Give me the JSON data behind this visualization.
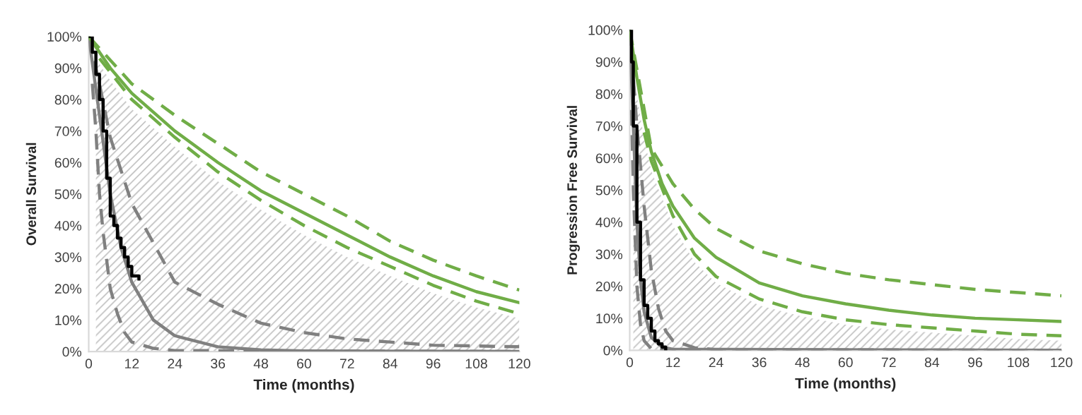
{
  "chart_data": [
    {
      "type": "line",
      "xlabel": "Time (months)",
      "ylabel": "Overall Survival",
      "xlim": [
        0,
        120
      ],
      "ylim": [
        0,
        100
      ],
      "xticks": [
        0,
        12,
        24,
        36,
        48,
        60,
        72,
        84,
        96,
        108,
        120
      ],
      "yticks": [
        {
          "value": 0,
          "label": "0%"
        },
        {
          "value": 10,
          "label": "10%"
        },
        {
          "value": 20,
          "label": "20%"
        },
        {
          "value": 30,
          "label": "30%"
        },
        {
          "value": 40,
          "label": "40%"
        },
        {
          "value": 50,
          "label": "50%"
        },
        {
          "value": 60,
          "label": "60%"
        },
        {
          "value": 70,
          "label": "70%"
        },
        {
          "value": 80,
          "label": "80%"
        },
        {
          "value": 90,
          "label": "90%"
        },
        {
          "value": 100,
          "label": "100%"
        }
      ],
      "grid": false,
      "legend": false,
      "marker": "none",
      "series": [
        {
          "type": "area",
          "color": "#bfbfbf",
          "x": [
            2,
            6,
            12,
            24,
            36,
            48,
            60,
            72,
            84,
            96,
            108,
            120
          ],
          "values": [
            93,
            86,
            77,
            65,
            54,
            45,
            37,
            30,
            24,
            18.5,
            14,
            10.5
          ]
        },
        {
          "color": "#808080",
          "line_style": "solid",
          "x": [
            0,
            3,
            6,
            9,
            12,
            18,
            24,
            36,
            48,
            60,
            120
          ],
          "values": [
            100,
            75,
            50,
            33,
            22,
            10,
            5,
            1.5,
            0.5,
            0.2,
            0
          ]
        },
        {
          "color": "#808080",
          "line_style": "dashed",
          "x": [
            0,
            3,
            6,
            12,
            24,
            36,
            48,
            60,
            72,
            84,
            96,
            120
          ],
          "values": [
            100,
            85,
            68,
            47,
            22,
            15,
            9,
            6,
            4,
            3,
            2,
            1.5
          ]
        },
        {
          "color": "#808080",
          "line_style": "dashed",
          "x": [
            1,
            2,
            3,
            4,
            6,
            8,
            10,
            12,
            18,
            24,
            120
          ],
          "values": [
            85,
            70,
            50,
            38,
            20,
            12,
            6,
            3,
            1,
            0.3,
            0
          ]
        },
        {
          "type": "step",
          "color": "#000000",
          "line_style": "solid",
          "x": [
            0,
            1,
            2,
            3,
            4,
            5,
            6,
            7,
            8,
            9,
            10,
            11,
            12,
            14
          ],
          "values": [
            100,
            95,
            88,
            80,
            70,
            55,
            43,
            40,
            36,
            33,
            30,
            27,
            24,
            23
          ]
        },
        {
          "color": "#70ad47",
          "line_style": "solid",
          "x": [
            0,
            6,
            12,
            18,
            24,
            36,
            48,
            60,
            72,
            84,
            96,
            108,
            120
          ],
          "values": [
            100,
            90,
            82,
            76,
            70,
            60,
            51,
            44,
            37,
            30,
            24,
            19,
            15.5
          ]
        },
        {
          "color": "#70ad47",
          "line_style": "dashed",
          "x": [
            0,
            12,
            24,
            36,
            48,
            60,
            72,
            84,
            96,
            108,
            120
          ],
          "values": [
            100,
            85,
            75,
            66,
            57,
            50,
            43,
            35,
            29,
            24,
            19.5
          ]
        },
        {
          "color": "#70ad47",
          "line_style": "dashed",
          "x": [
            3,
            12,
            24,
            36,
            48,
            60,
            72,
            84,
            96,
            108,
            120
          ],
          "values": [
            93,
            80,
            68,
            57,
            48,
            40,
            33,
            27,
            21,
            16,
            12
          ]
        }
      ]
    },
    {
      "type": "line",
      "xlabel": "Time (months)",
      "ylabel": "Progression Free Survival",
      "xlim": [
        0,
        120
      ],
      "ylim": [
        0,
        100
      ],
      "xticks": [
        0,
        12,
        24,
        36,
        48,
        60,
        72,
        84,
        96,
        108,
        120
      ],
      "yticks": [
        {
          "value": 0,
          "label": "0%"
        },
        {
          "value": 10,
          "label": "10%"
        },
        {
          "value": 20,
          "label": "20%"
        },
        {
          "value": 30,
          "label": "30%"
        },
        {
          "value": 40,
          "label": "40%"
        },
        {
          "value": 50,
          "label": "50%"
        },
        {
          "value": 60,
          "label": "60%"
        },
        {
          "value": 70,
          "label": "70%"
        },
        {
          "value": 80,
          "label": "80%"
        },
        {
          "value": 90,
          "label": "90%"
        },
        {
          "value": 100,
          "label": "100%"
        }
      ],
      "grid": false,
      "legend": false,
      "marker": "none",
      "series": [
        {
          "type": "area",
          "color": "#bfbfbf",
          "x": [
            1,
            4,
            6,
            12,
            18,
            24,
            36,
            48,
            60,
            72,
            84,
            96,
            108,
            120
          ],
          "values": [
            86,
            66,
            56,
            39,
            27.5,
            21,
            14,
            10.5,
            8,
            6.5,
            5.5,
            4.5,
            3.5,
            3
          ]
        },
        {
          "color": "#808080",
          "line_style": "solid",
          "x": [
            0,
            1,
            2,
            3,
            4,
            6,
            9,
            12,
            120
          ],
          "values": [
            100,
            70,
            40,
            22,
            12,
            4,
            1,
            0.3,
            0
          ]
        },
        {
          "color": "#808080",
          "line_style": "dashed",
          "x": [
            0,
            2,
            4,
            6,
            8,
            10,
            12,
            18,
            24,
            120
          ],
          "values": [
            100,
            70,
            45,
            25,
            13,
            6,
            3,
            0.8,
            0.2,
            0
          ]
        },
        {
          "color": "#808080",
          "line_style": "dashed",
          "x": [
            0.5,
            1,
            2,
            3,
            4,
            6,
            12,
            120
          ],
          "values": [
            75,
            50,
            20,
            8,
            3,
            0.5,
            0,
            0
          ]
        },
        {
          "type": "step",
          "color": "#000000",
          "line_style": "solid",
          "x": [
            0,
            0.5,
            1,
            2,
            3,
            4,
            5,
            6,
            7,
            8,
            9,
            10
          ],
          "values": [
            100,
            90,
            70,
            40,
            22,
            14,
            10,
            6,
            3,
            2,
            1,
            0
          ]
        },
        {
          "color": "#70ad47",
          "line_style": "solid",
          "x": [
            0,
            2,
            4,
            6,
            9,
            12,
            18,
            24,
            36,
            48,
            60,
            72,
            84,
            96,
            108,
            120
          ],
          "values": [
            100,
            85,
            72,
            62,
            52,
            45,
            35,
            29,
            21,
            17,
            14.5,
            12.5,
            11,
            10,
            9.5,
            9
          ]
        },
        {
          "color": "#70ad47",
          "line_style": "dashed",
          "x": [
            0,
            6,
            12,
            18,
            24,
            36,
            48,
            60,
            72,
            84,
            96,
            108,
            120
          ],
          "values": [
            100,
            63,
            52,
            44,
            38,
            31,
            27,
            24,
            22,
            20.5,
            19,
            18,
            17
          ]
        },
        {
          "color": "#70ad47",
          "line_style": "dashed",
          "x": [
            4,
            6,
            12,
            18,
            24,
            36,
            48,
            60,
            72,
            84,
            96,
            108,
            120
          ],
          "values": [
            68,
            59,
            42,
            30,
            23,
            16,
            12,
            9.5,
            8,
            7,
            6,
            5,
            4.5
          ]
        }
      ]
    }
  ]
}
